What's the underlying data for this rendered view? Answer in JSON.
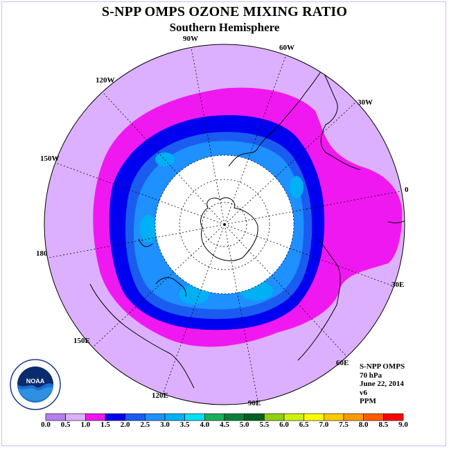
{
  "title": "S-NPP OMPS OZONE MIXING RATIO",
  "subtitle": "Southern Hemisphere",
  "longitude_labels": [
    "90W",
    "60W",
    "30W",
    "0",
    "30E",
    "60E",
    "90E",
    "120E",
    "150E",
    "180",
    "150W",
    "120W"
  ],
  "info": {
    "instrument": "S-NPP OMPS",
    "level": "70 hPa",
    "date": "June 22, 2014",
    "version": "v6",
    "units": "PPM"
  },
  "logo": {
    "text": "NOAA"
  },
  "colorbar": {
    "ticks": [
      "0.0",
      "0.5",
      "1.0",
      "1.5",
      "2.0",
      "2.5",
      "3.0",
      "3.5",
      "4.0",
      "4.5",
      "5.0",
      "5.5",
      "6.0",
      "6.5",
      "7.0",
      "7.5",
      "8.0",
      "8.5",
      "9.0"
    ],
    "colors": [
      "#b57ef0",
      "#dcb0fe",
      "#f018f0",
      "#0000f0",
      "#1a5cf0",
      "#1e90ff",
      "#00b0f4",
      "#00e0f8",
      "#1aaf5a",
      "#08803a",
      "#006020",
      "#90d010",
      "#d0f010",
      "#ffff00",
      "#ffc800",
      "#ff9b00",
      "#ff5b00",
      "#ff0000",
      "#8b5a3a"
    ]
  }
}
